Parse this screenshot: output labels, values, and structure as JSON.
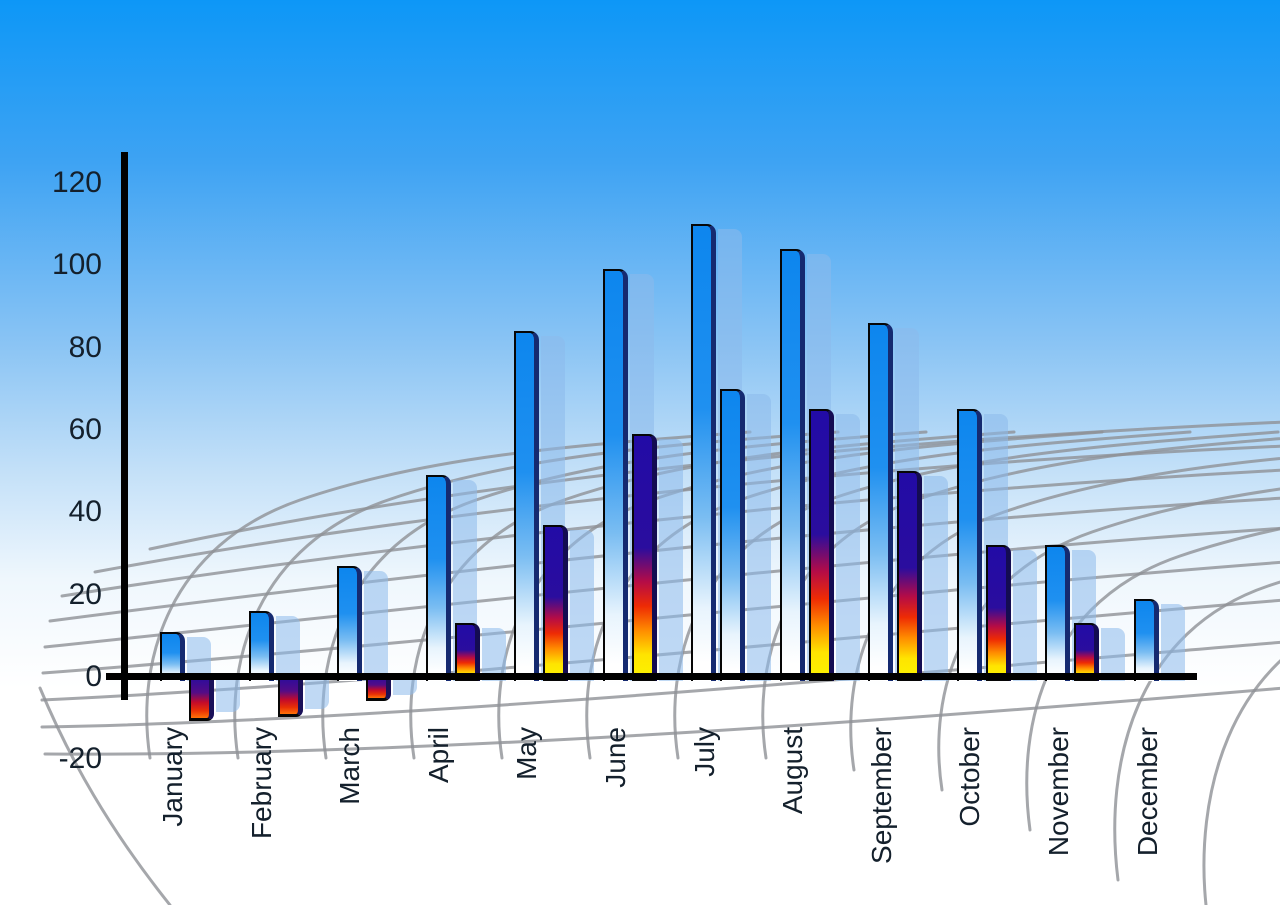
{
  "chart_data": {
    "type": "bar",
    "title": "",
    "xlabel": "",
    "ylabel": "",
    "categories": [
      "January",
      "February",
      "March",
      "April",
      "May",
      "June",
      "July",
      "August",
      "September",
      "October",
      "November",
      "December"
    ],
    "series": [
      {
        "name": "series-1-blue-bars",
        "values": [
          11,
          16,
          27,
          49,
          84,
          99,
          110,
          104,
          86,
          65,
          32,
          19
        ]
      },
      {
        "name": "series-2-fire-bars",
        "values": [
          -10,
          -9,
          -5,
          13,
          37,
          59,
          70,
          65,
          50,
          32,
          13,
          null
        ],
        "style_overrides": {
          "6": "blue",
          "11": "none"
        }
      }
    ],
    "y_ticks": [
      120,
      100,
      80,
      60,
      40,
      20,
      0,
      -20
    ],
    "ylim": [
      -20,
      120
    ],
    "legend": "none",
    "grid": "gray 3d perspective mesh behind bars",
    "notes": "each bar casts a translucent light-blue copy offset to the right; July second bar is blue-gradient; December has no second bar; Jan-Mar second bars are negative"
  },
  "colors": {
    "sky_top": "#0D97F7",
    "sky_bottom": "#FFFFFF",
    "axis": "#000000",
    "grid_line": "#8E9196",
    "label_text": "#14202C",
    "bar_blue_top": "#0D86EE",
    "bar_blue_bottom": "#FFFFFF",
    "bar_blue_side_edge": "#152A70",
    "bar_fire_navy": "#220BA6",
    "bar_fire_red": "#EE2B04",
    "bar_fire_orange": "#FF8C00",
    "bar_fire_yellow": "#FBF300",
    "bar_fire_side_edge": "#140C52",
    "bar_shadow": "rgba(141,186,235,0.55)"
  }
}
